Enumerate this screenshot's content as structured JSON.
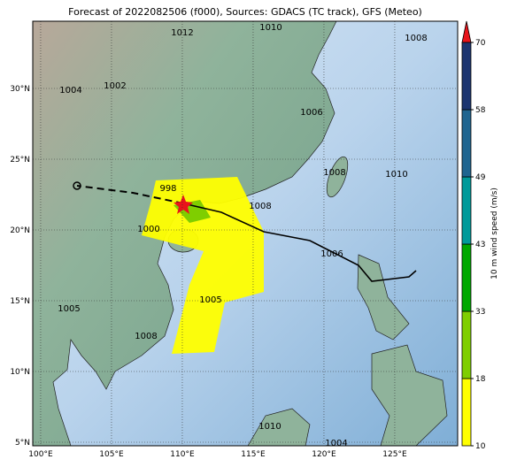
{
  "title": "Forecast of 2022082506 (f000), Sources: GDACS (TC track), GFS (Meteo)",
  "map": {
    "xticks": [
      {
        "value": 100,
        "label": "100°E"
      },
      {
        "value": 105,
        "label": "105°E"
      },
      {
        "value": 110,
        "label": "110°E"
      },
      {
        "value": 115,
        "label": "115°E"
      },
      {
        "value": 120,
        "label": "120°E"
      },
      {
        "value": 125,
        "label": "125°E"
      }
    ],
    "yticks": [
      {
        "value": 5,
        "label": "5°N"
      },
      {
        "value": 10,
        "label": "10°N"
      },
      {
        "value": 15,
        "label": "15°N"
      },
      {
        "value": 20,
        "label": "20°N"
      },
      {
        "value": 25,
        "label": "25°N"
      },
      {
        "value": 30,
        "label": "30°N"
      }
    ],
    "isobar_labels": [
      "1012",
      "1010",
      "1008",
      "1006",
      "1002",
      "1004",
      "1000",
      "998",
      "1008",
      "1005",
      "1005",
      "1008",
      "1010",
      "1010",
      "1008",
      "1006",
      "1004"
    ]
  },
  "colorbar": {
    "label": "10 m wind speed (m/s)",
    "levels": [
      10,
      18,
      33,
      43,
      49,
      58,
      70
    ],
    "colors": [
      "#ffff00",
      "#7fce00",
      "#00a800",
      "#009a9a",
      "#1f6590",
      "#1c3570"
    ]
  }
}
